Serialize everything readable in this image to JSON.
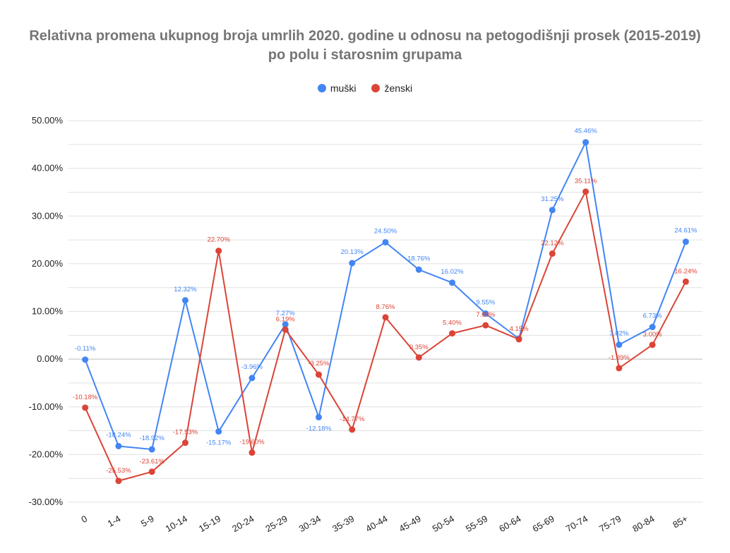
{
  "chart_data": {
    "type": "line",
    "title": "Relativna promena ukupnog broja umrlih 2020. godine u odnosu na petogodišnji prosek (2015-2019) po polu i starosnim grupama",
    "xlabel": "",
    "ylabel": "",
    "ylim": [
      -30,
      50
    ],
    "yticks": [
      "50.00%",
      "40.00%",
      "30.00%",
      "20.00%",
      "10.00%",
      "0.00%",
      "-10.00%",
      "-20.00%",
      "-30.00%"
    ],
    "ytick_values": [
      50,
      40,
      30,
      20,
      10,
      0,
      -10,
      -20,
      -30
    ],
    "grid": true,
    "legend_position": "top",
    "categories": [
      "0",
      "1-4",
      "5-9",
      "10-14",
      "15-19",
      "20-24",
      "25-29",
      "30-34",
      "35-39",
      "40-44",
      "45-49",
      "50-54",
      "55-59",
      "60-64",
      "65-69",
      "70-74",
      "75-79",
      "80-84",
      "85+"
    ],
    "series": [
      {
        "name": "muški",
        "color": "#4285f4",
        "values": [
          -0.11,
          -18.24,
          -18.92,
          12.32,
          -15.17,
          -3.96,
          7.27,
          -12.18,
          20.13,
          24.5,
          18.76,
          16.02,
          9.55,
          4.29,
          31.25,
          45.46,
          3.02,
          6.73,
          24.61
        ],
        "labels": [
          "-0.11%",
          "-18.24%",
          "-18.92%",
          "12.32%",
          "-15.17%",
          "-3.96%",
          "7.27%",
          "-12.18%",
          "20.13%",
          "24.50%",
          "18.76%",
          "16.02%",
          "9.55%",
          "",
          "31.25%",
          "45.46%",
          "3.02%",
          "6.73%",
          "24.61%"
        ]
      },
      {
        "name": "ženski",
        "color": "#db4437",
        "values": [
          -10.18,
          -25.53,
          -23.61,
          -17.53,
          22.7,
          -19.6,
          6.19,
          -3.25,
          -14.77,
          8.76,
          0.35,
          5.4,
          7.09,
          4.15,
          22.12,
          35.11,
          -1.89,
          3.0,
          16.24
        ],
        "labels": [
          "-10.18%",
          "-25.53%",
          "-23.61%",
          "-17.53%",
          "22.70%",
          "-19.60%",
          "6.19%",
          "-3.25%",
          "-14.77%",
          "8.76%",
          "0.35%",
          "5.40%",
          "7.09%",
          "4.15%",
          "22.12%",
          "35.11%",
          "-1.89%",
          "3.00%",
          "16.24%"
        ]
      }
    ]
  }
}
